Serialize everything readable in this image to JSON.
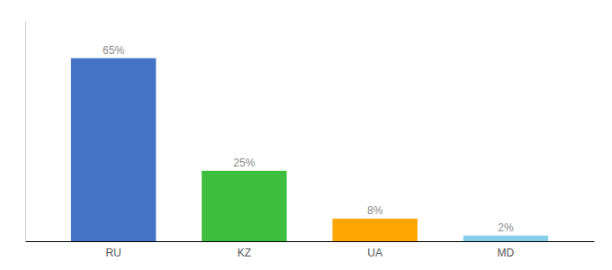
{
  "chart_data": {
    "type": "bar",
    "categories": [
      "RU",
      "KZ",
      "UA",
      "MD"
    ],
    "values": [
      65,
      25,
      8,
      2
    ],
    "value_labels": [
      "65%",
      "25%",
      "8%",
      "2%"
    ],
    "colors": [
      "#4472C4",
      "#3DBF3D",
      "#FFA500",
      "#87CEEB"
    ],
    "ylim": [
      0,
      78
    ],
    "data_labels": true,
    "tick_labels": "x"
  }
}
